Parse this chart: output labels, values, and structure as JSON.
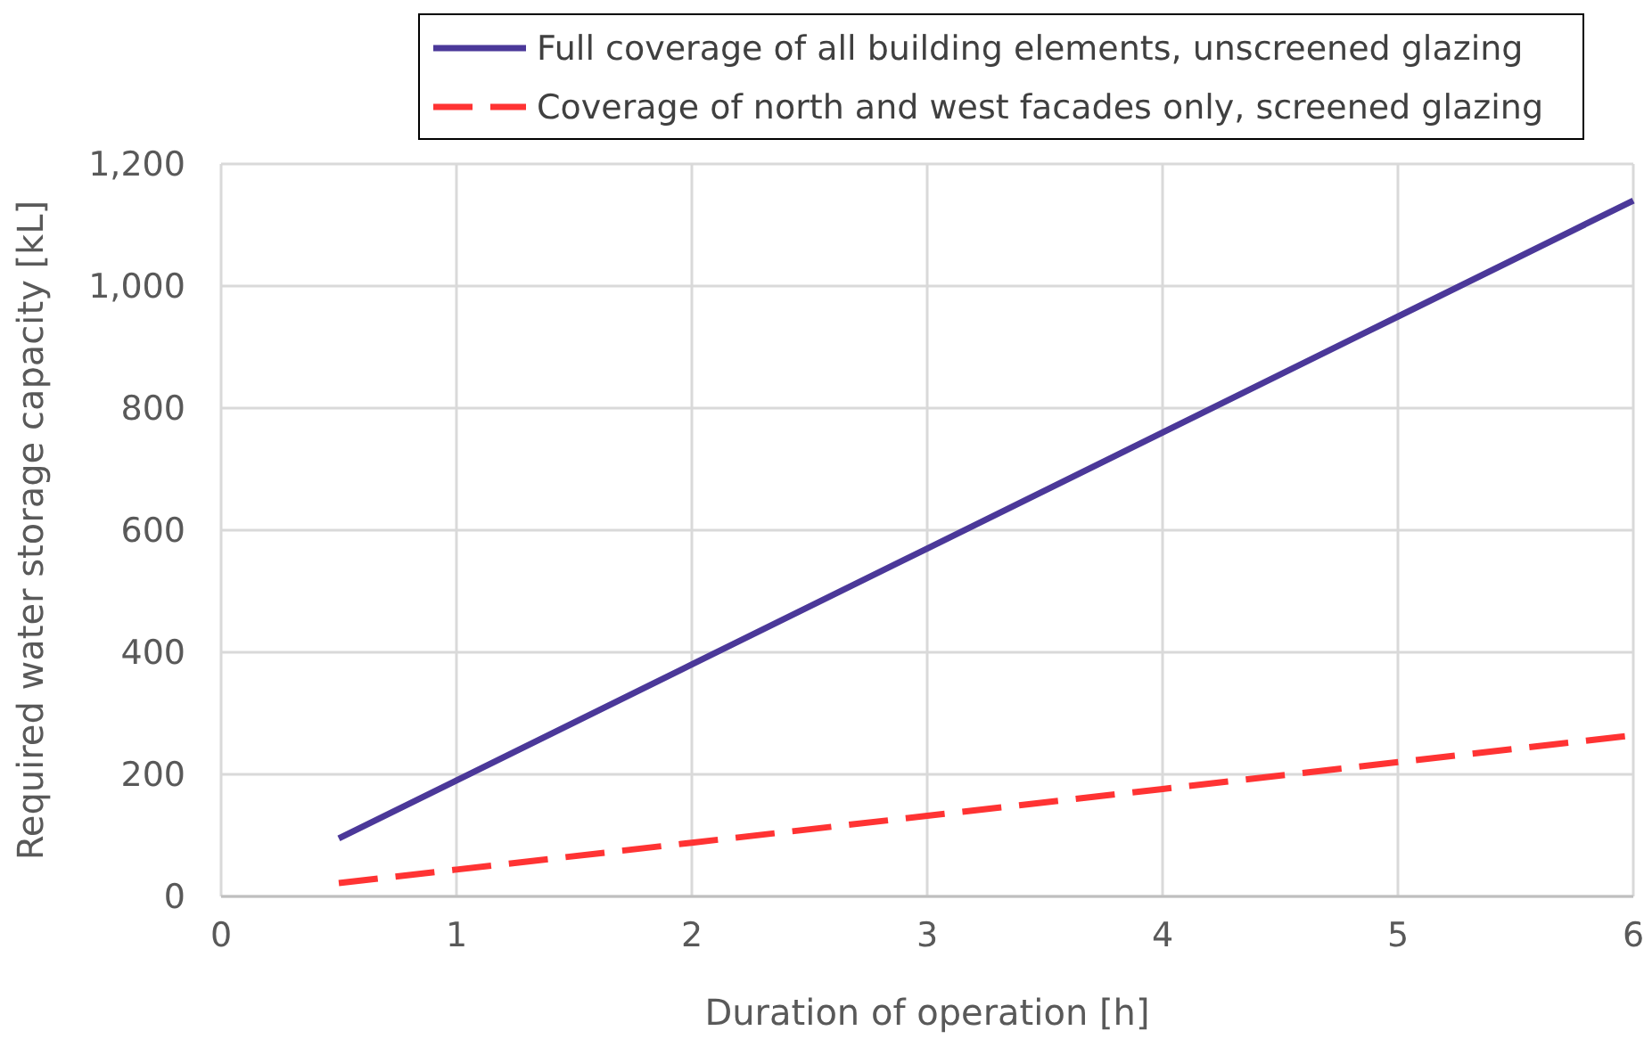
{
  "chart_data": {
    "type": "line",
    "xlabel": "Duration of operation [h]",
    "ylabel": "Required water storage capacity [kL]",
    "x": [
      0.5,
      1,
      2,
      3,
      4,
      5,
      6
    ],
    "series": [
      {
        "name": "Full coverage of all building elements, unscreened glazing",
        "color": "#4b3899",
        "line_style": "solid",
        "values": [
          95,
          190,
          380,
          570,
          760,
          950,
          1140
        ]
      },
      {
        "name": "Coverage of north and west facades only, screened glazing",
        "color": "#ff3333",
        "line_style": "dashed",
        "values": [
          22,
          44,
          88,
          132,
          176,
          220,
          264
        ]
      }
    ],
    "xlim": [
      0,
      6
    ],
    "xticks": [
      0,
      1,
      2,
      3,
      4,
      5,
      6
    ],
    "ylim": [
      0,
      1200
    ],
    "yticks": [
      0,
      200,
      400,
      600,
      800,
      {
        "value": 1000,
        "label": "1,000"
      },
      {
        "value": 1200,
        "label": "1,200"
      }
    ],
    "grid": true,
    "legend": "top",
    "marker": "none"
  }
}
